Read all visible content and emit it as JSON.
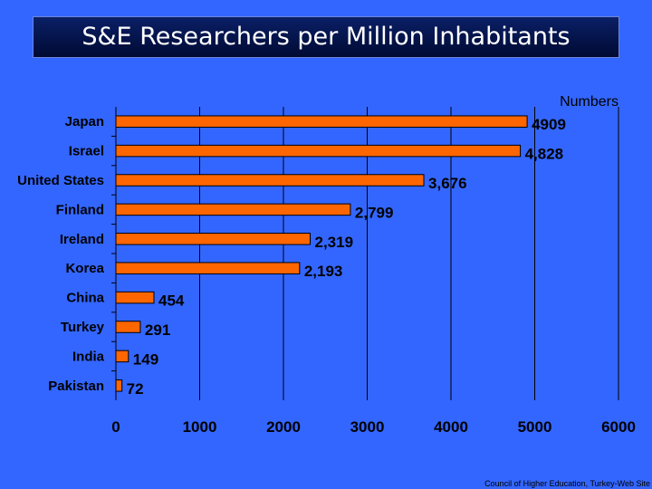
{
  "slide": {
    "title": "S&E Researchers per Million Inhabitants",
    "source": "Council of Higher Education, Turkey-Web Site",
    "background_color": "#3366ff",
    "bar_color": "#ff6600"
  },
  "chart_data": {
    "type": "bar",
    "orientation": "horizontal",
    "title": "S&E Researchers per Million Inhabitants",
    "legend": "Numbers",
    "legend_position": "top-right",
    "categories": [
      "Japan",
      "Israel",
      "United States",
      "Finland",
      "Ireland",
      "Korea",
      "China",
      "Turkey",
      "India",
      "Pakistan"
    ],
    "values": [
      4909,
      4828,
      3676,
      2799,
      2319,
      2193,
      454,
      291,
      149,
      72
    ],
    "value_labels": [
      "4909",
      "4,828",
      "3,676",
      "2,799",
      "2,319",
      "2,193",
      "454",
      "291",
      "149",
      "72"
    ],
    "xlim": [
      0,
      6000
    ],
    "xticks": [
      0,
      1000,
      2000,
      3000,
      4000,
      5000,
      6000
    ],
    "xtick_labels": [
      "0",
      "1000",
      "2000",
      "3000",
      "4000",
      "5000",
      "6000"
    ],
    "grid": true,
    "grid_axis": "x"
  }
}
